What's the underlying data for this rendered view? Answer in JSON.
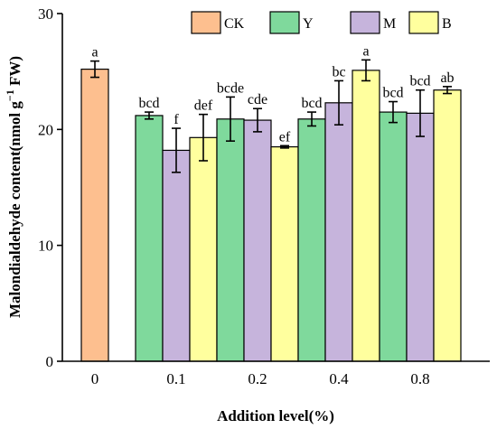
{
  "chart_data": {
    "type": "bar",
    "title": "",
    "xlabel": "Addition level(%)",
    "ylabel": "Malondialdehyde content(nmol g⁻¹ FW)",
    "ylabel_parts": {
      "main": "Malondialdehyde content(nmol g",
      "sup": "−1",
      "tail": " FW)"
    },
    "ylim": [
      0,
      30
    ],
    "yticks": [
      "0",
      "10",
      "20",
      "30"
    ],
    "categories": [
      "0",
      "0.1",
      "0.2",
      "0.4",
      "0.8"
    ],
    "series": [
      {
        "name": "CK",
        "color": "#FDBF8F",
        "values": [
          25.2,
          null,
          null,
          null,
          null
        ],
        "errors": [
          0.7,
          null,
          null,
          null,
          null
        ],
        "letters": [
          "a",
          null,
          null,
          null,
          null
        ]
      },
      {
        "name": "Y",
        "color": "#7FD99C",
        "values": [
          null,
          21.2,
          20.9,
          20.9,
          21.5
        ],
        "errors": [
          null,
          0.3,
          1.9,
          0.6,
          0.9
        ],
        "letters": [
          null,
          "bcd",
          "bcde",
          "bcd",
          "bcd"
        ]
      },
      {
        "name": "M",
        "color": "#C6B4DC",
        "values": [
          null,
          18.2,
          20.8,
          22.3,
          21.4
        ],
        "errors": [
          null,
          1.9,
          1.0,
          1.9,
          2.0
        ],
        "letters": [
          null,
          "f",
          "cde",
          "bc",
          "bcd"
        ]
      },
      {
        "name": "B",
        "color": "#FFFF9E",
        "values": [
          null,
          19.3,
          18.5,
          25.1,
          23.4
        ],
        "errors": [
          null,
          2.0,
          0.1,
          0.9,
          0.3
        ],
        "letters": [
          null,
          "def",
          "ef",
          "a",
          "ab"
        ]
      }
    ],
    "legend_position": "top-right",
    "grid": false
  }
}
